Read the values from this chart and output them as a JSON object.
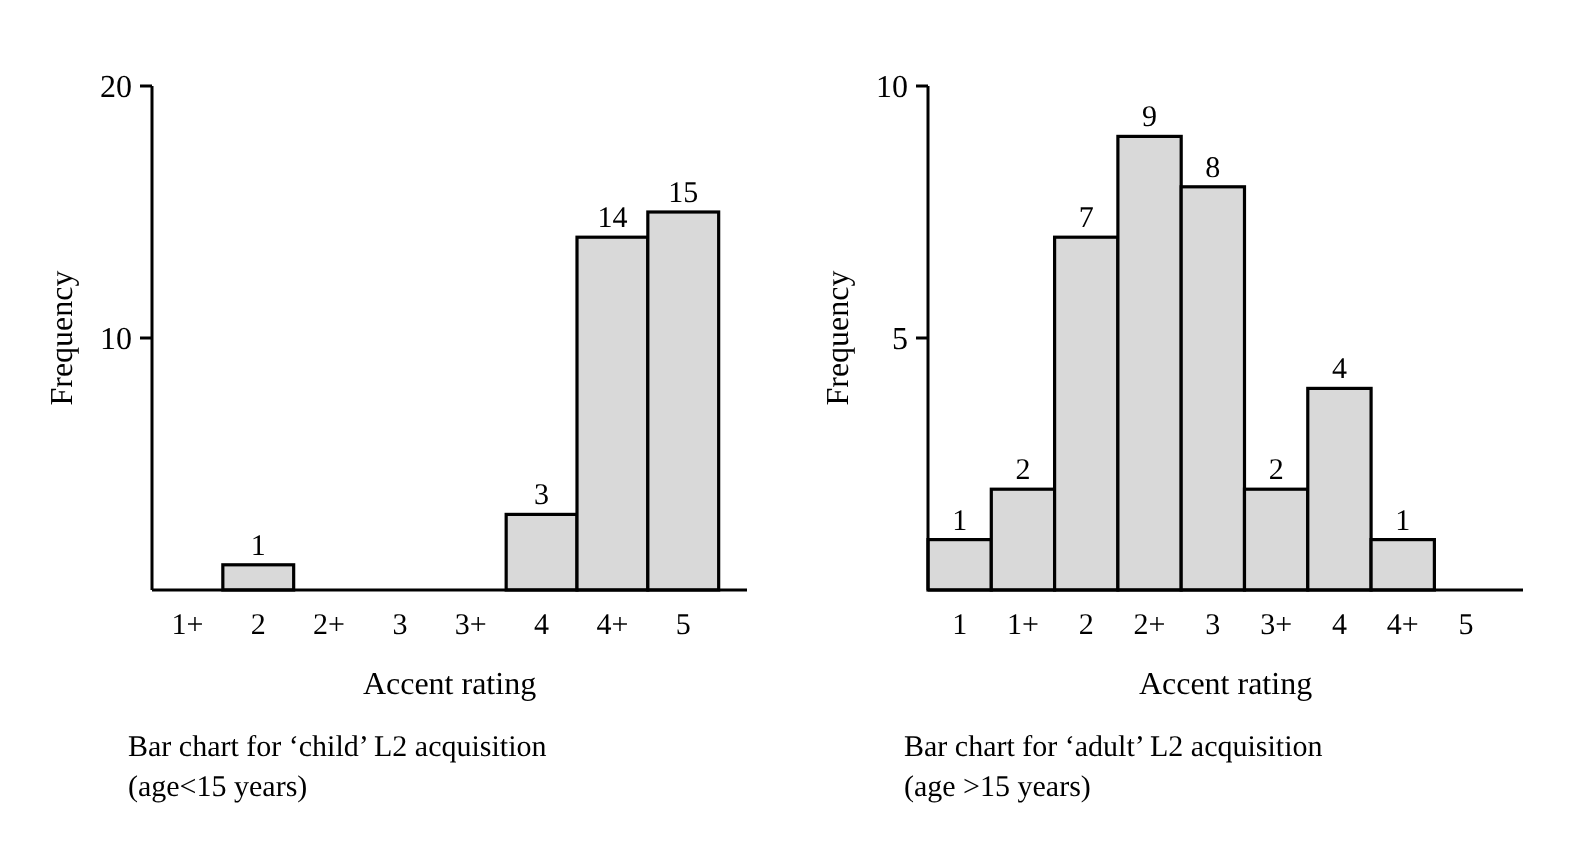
{
  "chart_data": [
    {
      "type": "bar",
      "title": "Bar chart for ‘child’ L2 acquisition (age<15 years)",
      "xlabel": "Accent rating",
      "ylabel": "Frequency",
      "categories": [
        "1+",
        "2",
        "2+",
        "3",
        "3+",
        "4",
        "4+",
        "5"
      ],
      "values": [
        0,
        1,
        0,
        0,
        0,
        3,
        14,
        15
      ],
      "value_labels": [
        null,
        "1",
        null,
        null,
        null,
        "3",
        "14",
        "15"
      ],
      "color": "#d9d9d9",
      "ylim": [
        0,
        20
      ],
      "yticks": [
        10,
        20
      ]
    },
    {
      "type": "bar",
      "title": "Bar chart for ‘adult’ L2 acquisition (age >15 years)",
      "xlabel": "Accent rating",
      "ylabel": "Frequency",
      "categories": [
        "1",
        "1+",
        "2",
        "2+",
        "3",
        "3+",
        "4",
        "4+",
        "5"
      ],
      "values": [
        1,
        2,
        7,
        9,
        8,
        2,
        4,
        1,
        0
      ],
      "value_labels": [
        "1",
        "2",
        "7",
        "9",
        "8",
        "2",
        "4",
        "1",
        null
      ],
      "color": "#d9d9d9",
      "ylim": [
        0,
        10
      ],
      "yticks": [
        5,
        10
      ]
    }
  ]
}
